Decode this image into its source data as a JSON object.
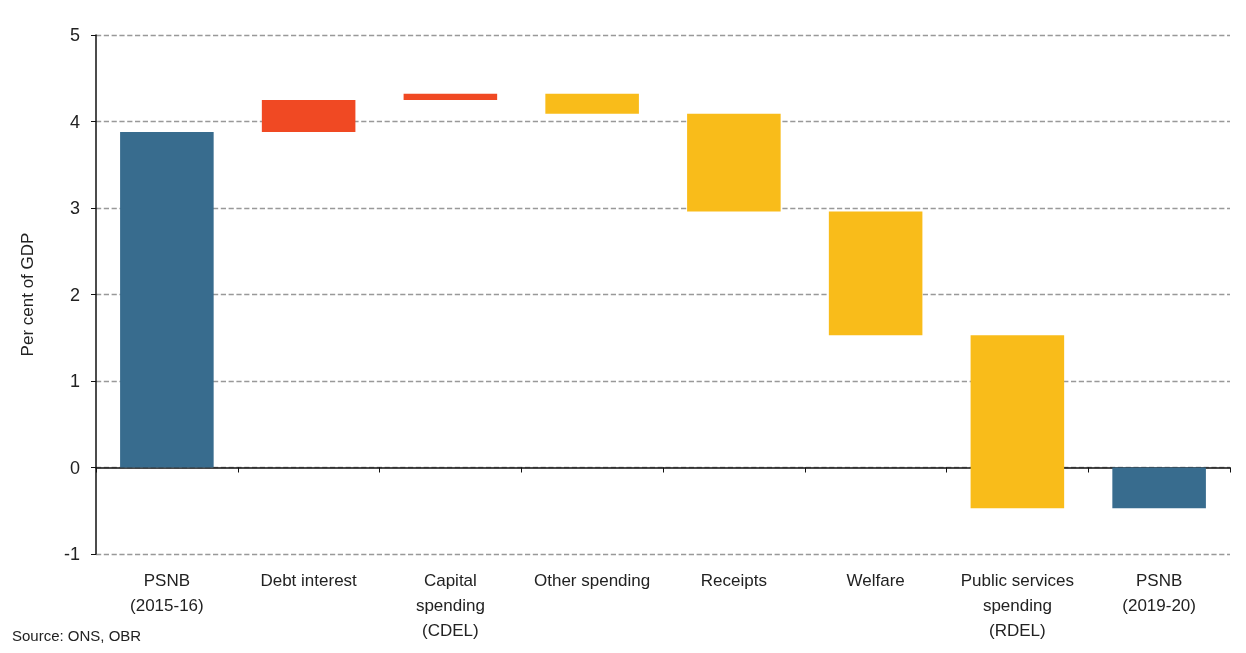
{
  "chart_data": {
    "type": "bar",
    "ylabel": "Per cent of GDP",
    "categories": [
      "PSNB\n(2015-16)",
      "Debt interest",
      "Capital\nspending\n(CDEL)",
      "Other spending",
      "Receipts",
      "Welfare",
      "Public services\nspending\n(RDEL)",
      "PSNB\n(2019-20)"
    ],
    "base": [
      0,
      3.88,
      4.25,
      4.32,
      4.09,
      2.96,
      1.53,
      0
    ],
    "values": [
      3.88,
      0.37,
      0.07,
      -0.23,
      -1.13,
      -1.43,
      -2.0,
      -0.47
    ],
    "colors": [
      "#386c8e",
      "#f04923",
      "#f04923",
      "#f9bc1a",
      "#f9bc1a",
      "#f9bc1a",
      "#f9bc1a",
      "#386c8e"
    ],
    "ylim": [
      -1,
      5
    ],
    "yticks": [
      -1,
      0,
      1,
      2,
      3,
      4,
      5
    ],
    "grid": "y",
    "annotations": [
      "Source: ONS, OBR"
    ]
  }
}
